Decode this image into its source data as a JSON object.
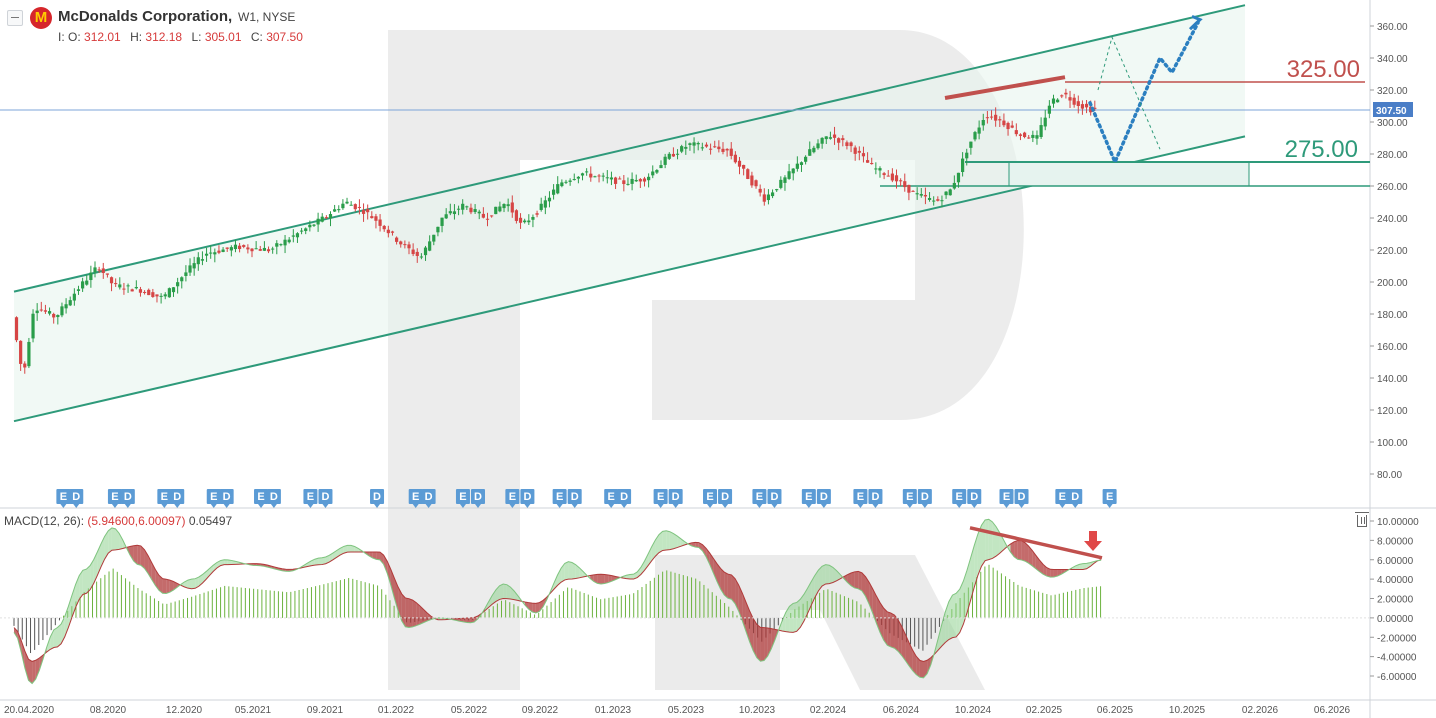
{
  "header": {
    "title": "McDonalds Corporation,",
    "subtitle": "W1, NYSE",
    "logo": "M",
    "ohlc": [
      {
        "label": "I: O:",
        "value": "312.01"
      },
      {
        "label": "H:",
        "value": "312.18"
      },
      {
        "label": "L:",
        "value": "305.01"
      },
      {
        "label": "C:",
        "value": "307.50"
      }
    ]
  },
  "macd_header": {
    "name": "MACD(12, 26):",
    "values": "(5.94600,6.00097)",
    "hist": "0.05497"
  },
  "colors": {
    "up": "#2a9d4a",
    "down": "#d64545",
    "channel": "#2e9a7a",
    "resistance": "#c0504d",
    "support": "#2e9a7a",
    "forecast": "#2b7fc0",
    "macd_up": "#8fd18f",
    "macd_down": "#b03a3a",
    "price_line": "#7da4d8",
    "badge": "#5b9bd5"
  },
  "chart_data": [
    {
      "type": "candlestick",
      "title": "McDonalds Corporation, W1, NYSE",
      "ylim": [
        70,
        370
      ],
      "y_ticks": [
        "360.00",
        "340.00",
        "320.00",
        "300.00",
        "280.00",
        "260.00",
        "240.00",
        "220.00",
        "200.00",
        "180.00",
        "160.00",
        "140.00",
        "120.00",
        "100.00",
        "80.00"
      ],
      "x_ticks": [
        "20.04.2020",
        "08.2020",
        "12.2020",
        "05.2021",
        "09.2021",
        "01.2022",
        "05.2022",
        "09.2022",
        "01.2023",
        "05.2023",
        "10.2023",
        "02.2024",
        "06.2024",
        "10.2024",
        "02.2025",
        "06.2025",
        "10.2025",
        "02.2026",
        "06.2026"
      ],
      "current_price": "307.50",
      "price_path": [
        [
          2020.25,
          178
        ],
        [
          2020.3,
          140
        ],
        [
          2020.35,
          185
        ],
        [
          2020.45,
          178
        ],
        [
          2020.55,
          195
        ],
        [
          2020.65,
          210
        ],
        [
          2020.72,
          198
        ],
        [
          2020.85,
          195
        ],
        [
          2020.95,
          190
        ],
        [
          2021.05,
          205
        ],
        [
          2021.15,
          218
        ],
        [
          2021.3,
          222
        ],
        [
          2021.45,
          220
        ],
        [
          2021.6,
          232
        ],
        [
          2021.7,
          240
        ],
        [
          2021.8,
          250
        ],
        [
          2021.88,
          245
        ],
        [
          2021.95,
          238
        ],
        [
          2022.05,
          225
        ],
        [
          2022.15,
          215
        ],
        [
          2022.25,
          240
        ],
        [
          2022.35,
          248
        ],
        [
          2022.45,
          240
        ],
        [
          2022.55,
          250
        ],
        [
          2022.62,
          235
        ],
        [
          2022.7,
          245
        ],
        [
          2022.8,
          262
        ],
        [
          2022.9,
          268
        ],
        [
          2023.0,
          265
        ],
        [
          2023.1,
          262
        ],
        [
          2023.2,
          265
        ],
        [
          2023.3,
          278
        ],
        [
          2023.4,
          286
        ],
        [
          2023.5,
          284
        ],
        [
          2023.58,
          282
        ],
        [
          2023.66,
          268
        ],
        [
          2023.75,
          252
        ],
        [
          2023.85,
          265
        ],
        [
          2023.95,
          280
        ],
        [
          2024.05,
          292
        ],
        [
          2024.15,
          285
        ],
        [
          2024.25,
          272
        ],
        [
          2024.35,
          265
        ],
        [
          2024.45,
          255
        ],
        [
          2024.55,
          250
        ],
        [
          2024.62,
          258
        ],
        [
          2024.7,
          285
        ],
        [
          2024.78,
          305
        ],
        [
          2024.86,
          300
        ],
        [
          2024.94,
          292
        ],
        [
          2025.02,
          290
        ],
        [
          2025.08,
          312
        ],
        [
          2025.14,
          318
        ],
        [
          2025.2,
          312
        ],
        [
          2025.26,
          308
        ]
      ],
      "annotations": {
        "channel_upper": [
          [
            2020.22,
            194
          ],
          [
            2025.95,
            373
          ]
        ],
        "channel_lower": [
          [
            2020.22,
            113
          ],
          [
            2025.95,
            291
          ]
        ],
        "resistance_trend": [
          [
            2024.7,
            315
          ],
          [
            2025.05,
            328
          ]
        ],
        "resistance_level": {
          "y": 325,
          "label": "325.00"
        },
        "support_level": {
          "y": 275,
          "label": "275.00"
        },
        "support_zone": [
          260,
          275
        ],
        "forecast_main": [
          [
            2025.25,
            312
          ],
          [
            2025.46,
            275
          ],
          [
            2025.7,
            340
          ],
          [
            2025.76,
            331
          ],
          [
            2025.88,
            362
          ]
        ],
        "forecast_alt": [
          [
            2025.08,
            320
          ],
          [
            2025.35,
            353
          ],
          [
            2025.7,
            283
          ]
        ]
      },
      "earnings_badges": [
        {
          "x": 2020.38,
          "label": "E"
        },
        {
          "x": 2020.44,
          "label": "D"
        },
        {
          "x": 2020.62,
          "label": "E"
        },
        {
          "x": 2020.68,
          "label": "D"
        },
        {
          "x": 2020.85,
          "label": "E"
        },
        {
          "x": 2020.91,
          "label": "D"
        },
        {
          "x": 2021.08,
          "label": "E"
        },
        {
          "x": 2021.14,
          "label": "D"
        },
        {
          "x": 2021.3,
          "label": "E"
        },
        {
          "x": 2021.36,
          "label": "D"
        },
        {
          "x": 2021.53,
          "label": "E"
        },
        {
          "x": 2021.6,
          "label": "D"
        },
        {
          "x": 2021.84,
          "label": "D"
        },
        {
          "x": 2022.02,
          "label": "E"
        },
        {
          "x": 2022.08,
          "label": "D"
        },
        {
          "x": 2022.24,
          "label": "E"
        },
        {
          "x": 2022.31,
          "label": "D"
        },
        {
          "x": 2022.47,
          "label": "E"
        },
        {
          "x": 2022.54,
          "label": "D"
        },
        {
          "x": 2022.69,
          "label": "E"
        },
        {
          "x": 2022.76,
          "label": "D"
        },
        {
          "x": 2022.93,
          "label": "E"
        },
        {
          "x": 2022.99,
          "label": "D"
        },
        {
          "x": 2023.16,
          "label": "E"
        },
        {
          "x": 2023.23,
          "label": "D"
        },
        {
          "x": 2023.39,
          "label": "E"
        },
        {
          "x": 2023.46,
          "label": "D"
        },
        {
          "x": 2023.62,
          "label": "E"
        },
        {
          "x": 2023.69,
          "label": "D"
        },
        {
          "x": 2023.85,
          "label": "E"
        },
        {
          "x": 2023.92,
          "label": "D"
        },
        {
          "x": 2024.09,
          "label": "E"
        },
        {
          "x": 2024.16,
          "label": "D"
        },
        {
          "x": 2024.32,
          "label": "E"
        },
        {
          "x": 2024.39,
          "label": "D"
        },
        {
          "x": 2024.55,
          "label": "E"
        },
        {
          "x": 2024.62,
          "label": "D"
        },
        {
          "x": 2024.77,
          "label": "E"
        },
        {
          "x": 2024.84,
          "label": "D"
        },
        {
          "x": 2025.03,
          "label": "E"
        },
        {
          "x": 2025.09,
          "label": "D"
        },
        {
          "x": 2025.25,
          "label": "E"
        }
      ]
    },
    {
      "type": "area",
      "title": "MACD(12, 26)",
      "ylim": [
        -7,
        10.5
      ],
      "y_ticks": [
        "10.00000",
        "8.00000",
        "6.00000",
        "4.00000",
        "2.00000",
        "0.00000",
        "-2.00000",
        "-4.00000",
        "-6.00000"
      ],
      "x_ticks": [
        "20.04.2020",
        "08.2020",
        "12.2020",
        "05.2021",
        "09.2021",
        "01.2022",
        "05.2022",
        "09.2022",
        "01.2023",
        "05.2023",
        "10.2023",
        "02.2024",
        "06.2024",
        "10.2024",
        "02.2025",
        "06.2025",
        "10.2025",
        "02.2026",
        "06.2026"
      ],
      "series": [
        {
          "x": [
            2020.22,
            2020.3,
            2020.42,
            2020.55,
            2020.68,
            2020.8,
            2020.92,
            2021.05,
            2021.2,
            2021.35,
            2021.5,
            2021.65,
            2021.78,
            2021.92,
            2022.05,
            2022.2,
            2022.35,
            2022.5,
            2022.65,
            2022.8,
            2022.95,
            2023.1,
            2023.25,
            2023.4,
            2023.55,
            2023.7,
            2023.85,
            2024.0,
            2024.15,
            2024.3,
            2024.45,
            2024.6,
            2024.75,
            2024.9,
            2025.05,
            2025.2,
            2025.28
          ],
          "fast": [
            -1.5,
            -6.8,
            -1.0,
            5.0,
            9.3,
            5.5,
            2.5,
            4.0,
            6.0,
            5.4,
            4.8,
            6.2,
            7.5,
            6.0,
            -1.0,
            0.0,
            -0.5,
            3.5,
            0.5,
            5.8,
            3.5,
            4.5,
            9.0,
            7.3,
            2.0,
            -4.5,
            1.5,
            5.5,
            3.0,
            -3.0,
            -6.2,
            2.5,
            10.2,
            6.0,
            4.2,
            5.6,
            5.946
          ],
          "slow": [
            -1.0,
            -4.5,
            -3.0,
            2.5,
            7.0,
            7.5,
            4.0,
            3.0,
            5.5,
            5.6,
            5.0,
            5.5,
            6.8,
            6.8,
            2.0,
            -0.2,
            0.0,
            2.0,
            1.5,
            4.0,
            4.5,
            4.0,
            7.0,
            7.8,
            4.5,
            -1.0,
            -1.5,
            3.5,
            4.8,
            0.5,
            -4.5,
            -2.0,
            6.0,
            8.0,
            5.0,
            5.0,
            6.001
          ]
        }
      ],
      "annotations": {
        "divergence_line": [
          [
            2024.78,
            9.3
          ],
          [
            2025.28,
            6.2
          ]
        ]
      }
    }
  ]
}
